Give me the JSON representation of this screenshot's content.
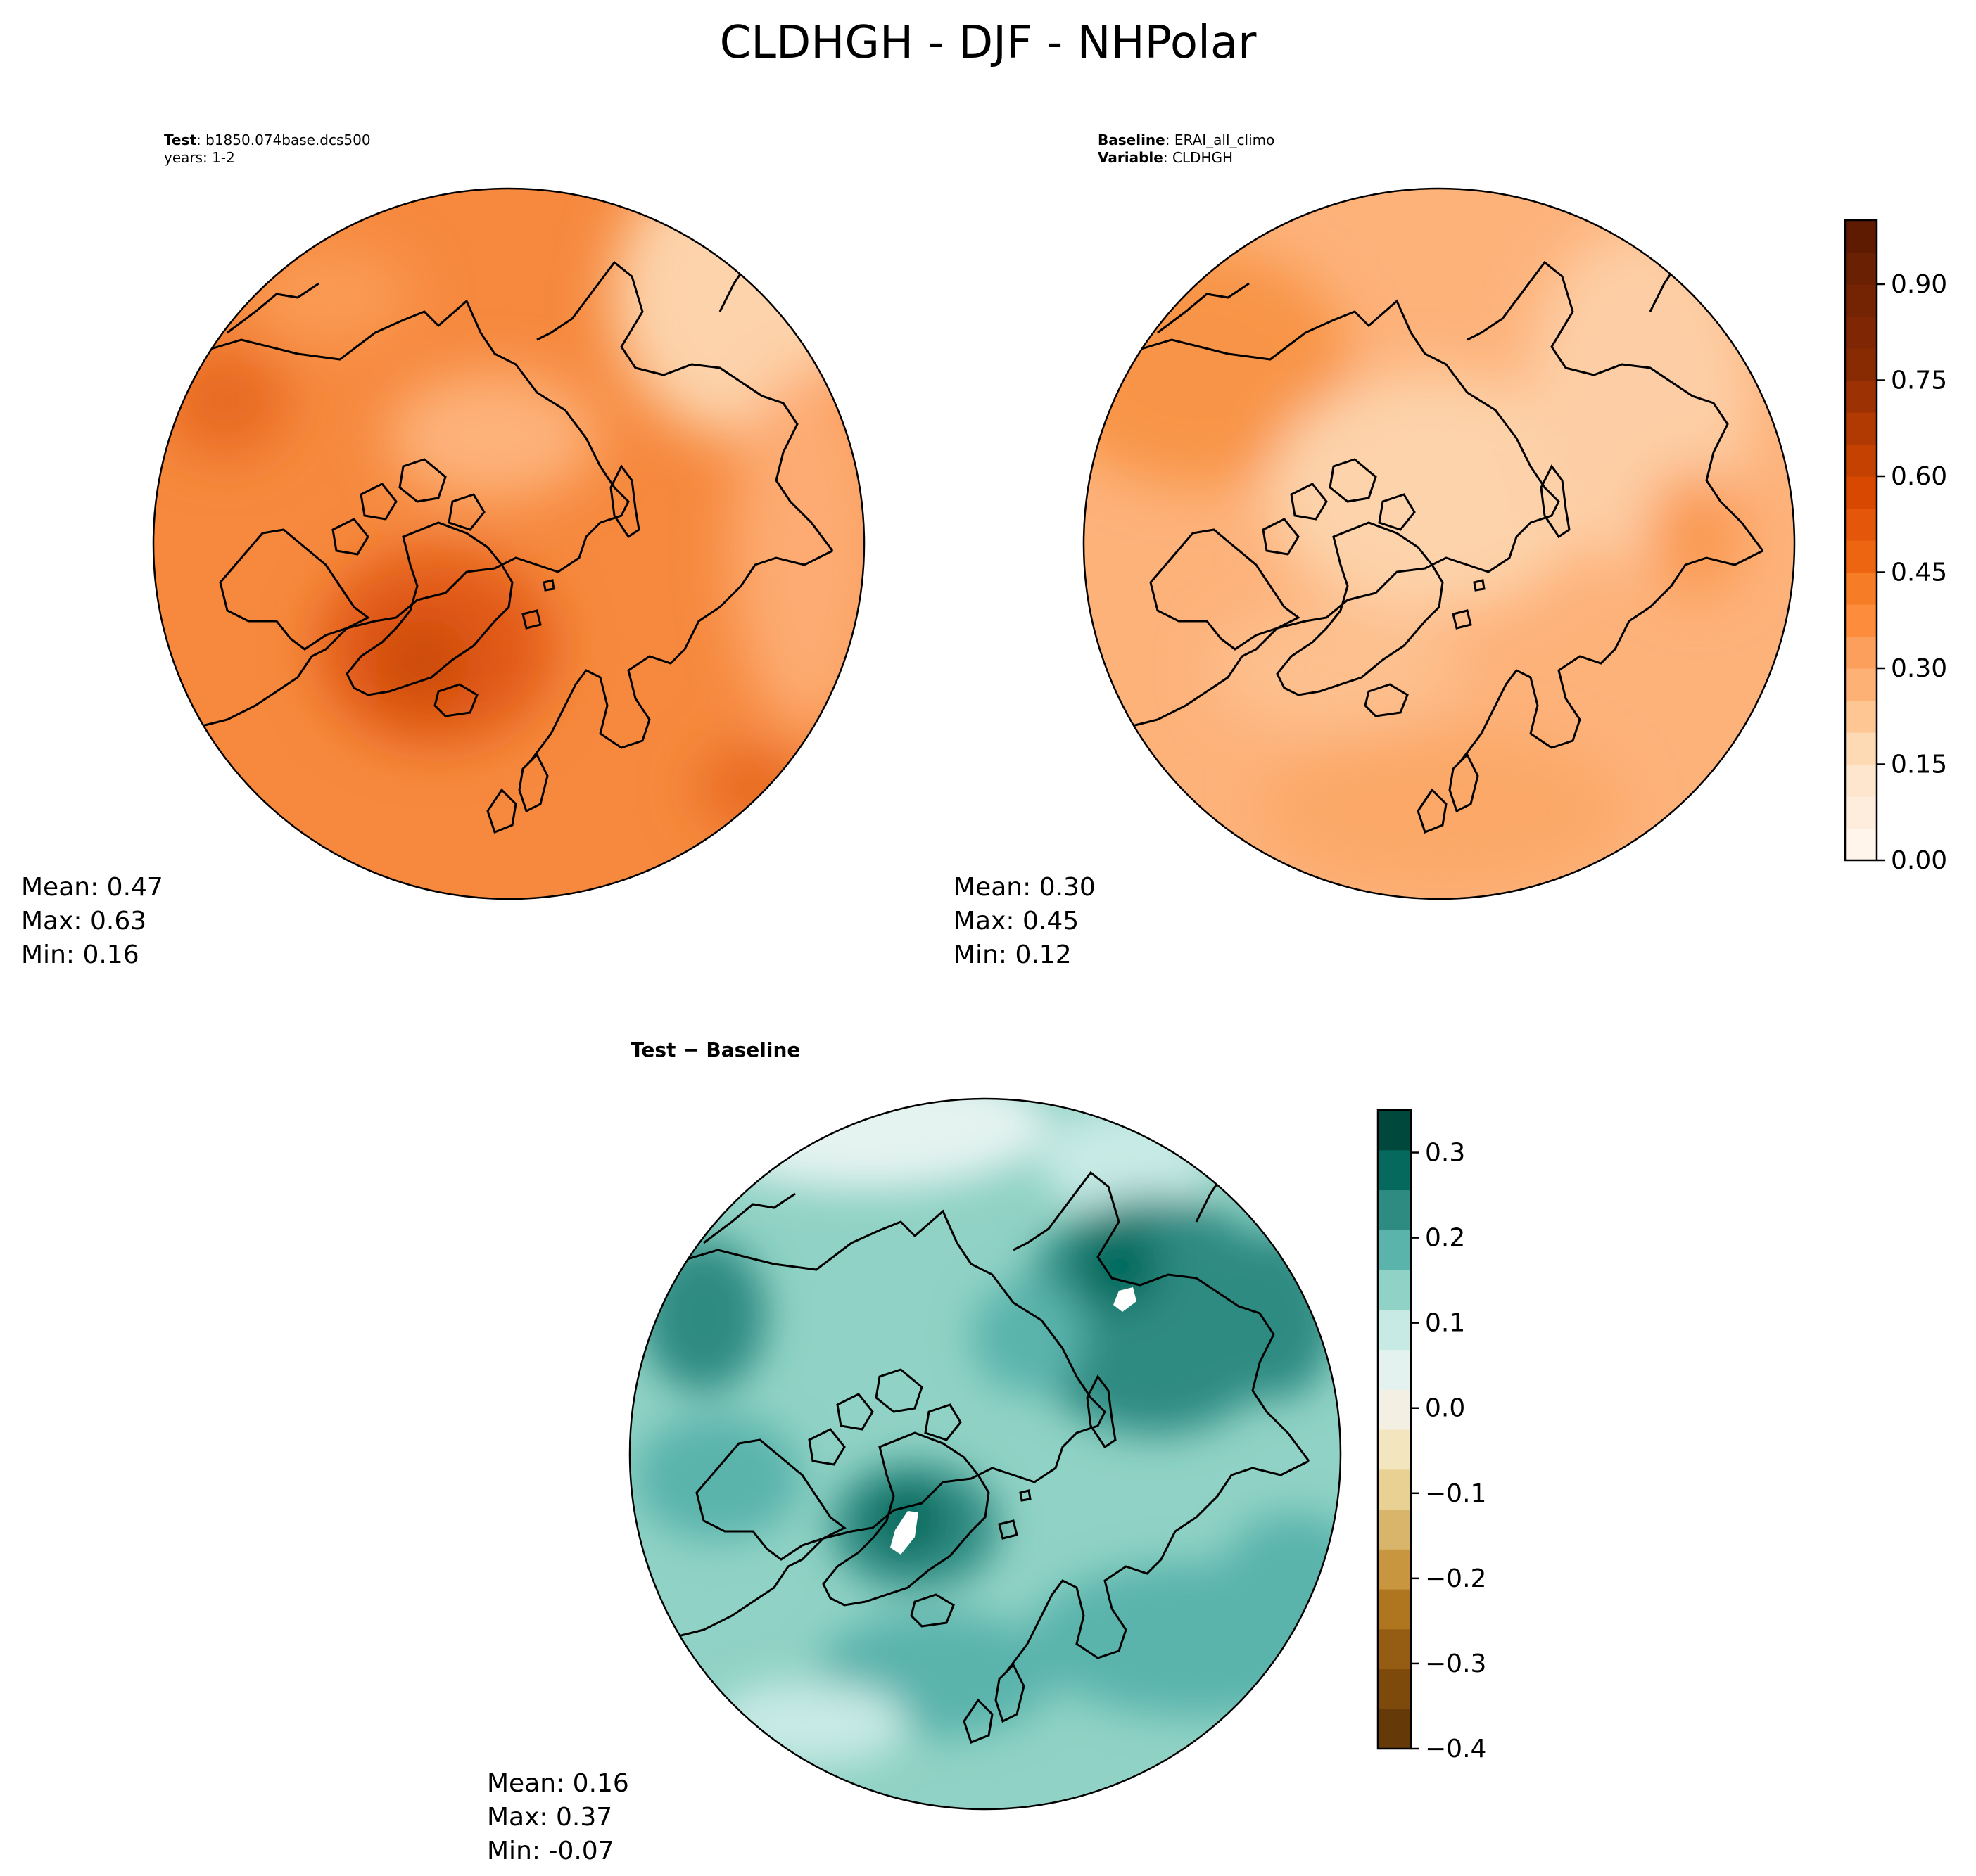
{
  "figure": {
    "title": "CLDHGH - DJF - NHPolar"
  },
  "chart_data": [
    {
      "type": "heatmap",
      "projection": "north-polar-stereographic",
      "panel": "test",
      "label_key": "Test",
      "label_value": "b1850.074base.dcs500",
      "label_line2": "years: 1-2",
      "stats": {
        "mean": "Mean:  0.47",
        "max": "Max:  0.63",
        "min": "Min:  0.16"
      },
      "field_range": [
        0.16,
        0.63
      ],
      "dominant_color": "#f4873a"
    },
    {
      "type": "heatmap",
      "projection": "north-polar-stereographic",
      "panel": "baseline",
      "label_key": "Baseline",
      "label_value": "ERAI_all_climo",
      "label_key2": "Variable",
      "label_value2": "CLDHGH",
      "stats": {
        "mean": "Mean:  0.30",
        "max": "Max:  0.45",
        "min": "Min:  0.12"
      },
      "field_range": [
        0.12,
        0.45
      ],
      "dominant_color": "#fdb27a",
      "colorbar": {
        "cmap": "Oranges",
        "range": [
          0.0,
          1.0
        ],
        "levels": 20,
        "ticks": [
          "0.00",
          "0.15",
          "0.30",
          "0.45",
          "0.60",
          "0.75",
          "0.90"
        ],
        "tick_values": [
          0.0,
          0.15,
          0.3,
          0.45,
          0.6,
          0.75,
          0.9
        ],
        "colors": [
          "#fff5eb",
          "#feeddd",
          "#fee6ce",
          "#fdd9b4",
          "#fdc692",
          "#fdb175",
          "#fd9f5c",
          "#fd8d3c",
          "#f67c26",
          "#ee6511",
          "#e45609",
          "#d94801",
          "#c44102",
          "#b03a02",
          "#9c3203",
          "#882b03",
          "#7f2704",
          "#742303",
          "#6a2003",
          "#5e1b02"
        ]
      }
    },
    {
      "type": "heatmap",
      "projection": "north-polar-stereographic",
      "panel": "difference",
      "label": "Test − Baseline",
      "stats": {
        "mean": "Mean:  0.16",
        "max": "Max:  0.37",
        "min": "Min: -0.07"
      },
      "field_range": [
        -0.07,
        0.37
      ],
      "dominant_color": "#5ab4ac",
      "colorbar": {
        "cmap": "BrBG",
        "range": [
          -0.4,
          0.35
        ],
        "levels": 15,
        "ticks": [
          "−0.4",
          "−0.3",
          "−0.2",
          "−0.1",
          "0.0",
          "0.1",
          "0.2",
          "0.3"
        ],
        "tick_values": [
          -0.4,
          -0.3,
          -0.2,
          -0.1,
          0.0,
          0.1,
          0.2,
          0.3
        ],
        "colors": [
          "#653a08",
          "#7d4a0c",
          "#955c13",
          "#b0761f",
          "#c8963f",
          "#d8b56a",
          "#e9d194",
          "#f3e5bd",
          "#f4efe3",
          "#e3f2ef",
          "#c7eae5",
          "#90d2c5",
          "#5ab4ac",
          "#2e8b82",
          "#056a5d",
          "#00483c"
        ]
      }
    }
  ]
}
